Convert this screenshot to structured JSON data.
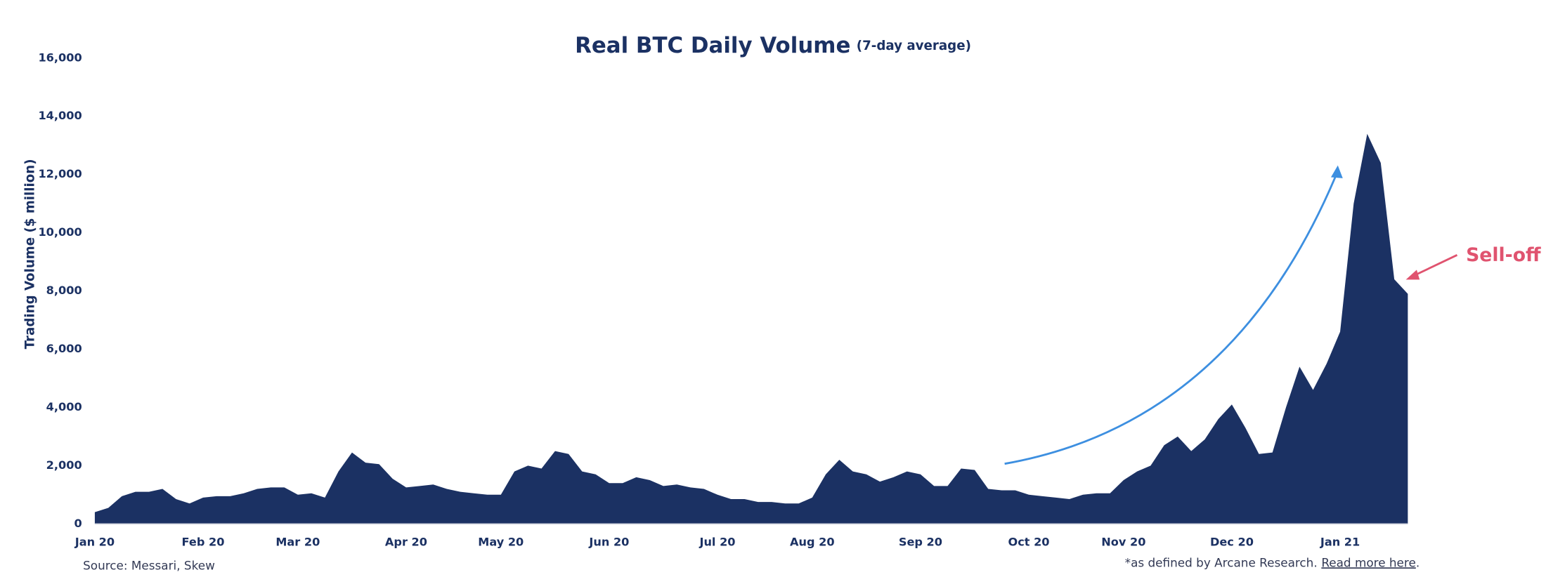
{
  "chart_data": {
    "type": "area",
    "title": "Real BTC Daily Volume",
    "subtitle": "(7-day average)",
    "y_label": "Trading Volume ($ million)",
    "color": "#1b3163",
    "categories": [
      "Jan 20",
      null,
      null,
      null,
      null,
      null,
      null,
      null,
      "Feb 20",
      null,
      null,
      null,
      null,
      null,
      null,
      "Mar 20",
      null,
      null,
      null,
      null,
      null,
      null,
      null,
      "Apr 20",
      null,
      null,
      null,
      null,
      null,
      null,
      "May 20",
      null,
      null,
      null,
      null,
      null,
      null,
      null,
      "Jun 20",
      null,
      null,
      null,
      null,
      null,
      null,
      null,
      "Jul 20",
      null,
      null,
      null,
      null,
      null,
      null,
      "Aug 20",
      null,
      null,
      null,
      null,
      null,
      null,
      null,
      "Sep 20",
      null,
      null,
      null,
      null,
      null,
      null,
      null,
      "Oct 20",
      null,
      null,
      null,
      null,
      null,
      null,
      "Nov 20",
      null,
      null,
      null,
      null,
      null,
      null,
      null,
      "Dec 20",
      null,
      null,
      null,
      null,
      null,
      null,
      null,
      "Jan 21",
      null,
      null,
      null,
      null,
      null
    ],
    "values": [
      400,
      550,
      950,
      1100,
      1100,
      1200,
      850,
      700,
      900,
      950,
      950,
      1050,
      1200,
      1250,
      1250,
      1000,
      1050,
      900,
      1800,
      2450,
      2100,
      2050,
      1550,
      1250,
      1300,
      1350,
      1200,
      1100,
      1050,
      1000,
      1000,
      1800,
      2000,
      1900,
      2500,
      2400,
      1800,
      1700,
      1400,
      1400,
      1600,
      1500,
      1300,
      1350,
      1250,
      1200,
      1000,
      850,
      850,
      750,
      750,
      700,
      700,
      900,
      1700,
      2200,
      1800,
      1700,
      1450,
      1600,
      1800,
      1700,
      1300,
      1300,
      1900,
      1850,
      1200,
      1150,
      1150,
      1000,
      950,
      900,
      850,
      1000,
      1050,
      1050,
      1500,
      1800,
      2000,
      2700,
      3000,
      2500,
      2900,
      3600,
      4100,
      3300,
      2400,
      2450,
      4000,
      5400,
      4600,
      5500,
      6600,
      11000,
      13400,
      12400,
      8400,
      7900
    ],
    "ylim": [
      0,
      16000
    ],
    "yticks": [
      0,
      {
        "value": 2000,
        "label": "2,000"
      },
      {
        "value": 4000,
        "label": "4,000"
      },
      {
        "value": 6000,
        "label": "6,000"
      },
      {
        "value": 8000,
        "label": "8,000"
      },
      {
        "value": 10000,
        "label": "10,000"
      },
      {
        "value": 12000,
        "label": "12,000"
      },
      {
        "value": 14000,
        "label": "14,000"
      },
      {
        "value": 16000,
        "label": "16,000"
      }
    ],
    "annotation": "Sell-off",
    "source": "Source: Messari, Skew",
    "footnote": "*as defined by Arcane Research.",
    "footnote_link": "Read more here",
    "footnote_end": "."
  }
}
